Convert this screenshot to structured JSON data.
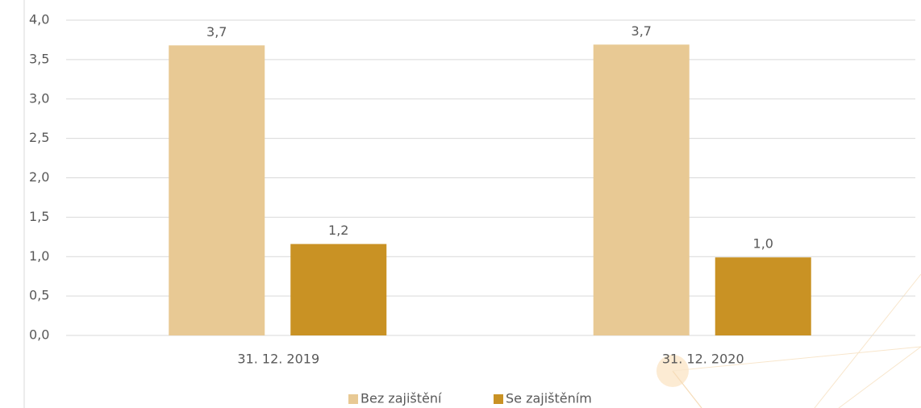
{
  "chart_data": {
    "type": "bar",
    "categories": [
      "31. 12. 2019",
      "31. 12. 2020"
    ],
    "series": [
      {
        "name": "Bez zajištění",
        "color": "#e8c994",
        "values": [
          3.68,
          3.69
        ],
        "value_labels": [
          "3,7",
          "3,7"
        ]
      },
      {
        "name": "Se zajištěním",
        "color": "#c99224",
        "values": [
          1.16,
          0.99
        ],
        "value_labels": [
          "1,2",
          "1,0"
        ]
      }
    ],
    "ylim": [
      0,
      4
    ],
    "yticks": [
      {
        "value": 0,
        "label": "0,0"
      },
      {
        "value": 0.5,
        "label": "0,5"
      },
      {
        "value": 1,
        "label": "1,0"
      },
      {
        "value": 1.5,
        "label": "1,5"
      },
      {
        "value": 2,
        "label": "2,0"
      },
      {
        "value": 2.5,
        "label": "2,5"
      },
      {
        "value": 3,
        "label": "3,0"
      },
      {
        "value": 3.5,
        "label": "3,5"
      },
      {
        "value": 4,
        "label": "4,0"
      }
    ],
    "grid": true
  }
}
